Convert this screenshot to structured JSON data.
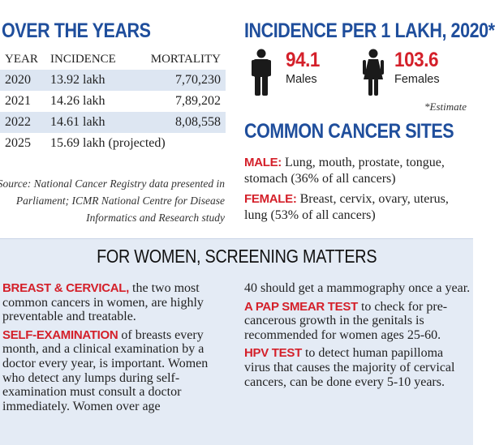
{
  "years": {
    "title": "OVER THE YEARS",
    "headers": {
      "year": "YEAR",
      "incidence": "INCIDENCE",
      "mortality": "MORTALITY"
    },
    "rows": [
      {
        "year": "2020",
        "incidence": "13.92 lakh",
        "mortality": "7,70,230"
      },
      {
        "year": "2021",
        "incidence": "14.26 lakh",
        "mortality": "7,89,202"
      },
      {
        "year": "2022",
        "incidence": "14.61 lakh",
        "mortality": "8,08,558"
      },
      {
        "year": "2025",
        "incidence": "15.69 lakh (projected)",
        "mortality": ""
      }
    ],
    "source": "Source: National Cancer Registry data presented in Parliament; ICMR National Centre for Disease Informatics and Research study"
  },
  "incidence": {
    "title": "INCIDENCE PER 1 LAKH, 2020*",
    "males_value": "94.1",
    "males_label": "Males",
    "females_value": "103.6",
    "females_label": "Females",
    "note": "*Estimate"
  },
  "sites": {
    "title": "COMMON CANCER SITES",
    "male_key": "MALE:",
    "male_text": " Lung, mouth, prostate, tongue, stomach (36% of all cancers)",
    "female_key": "FEMALE:",
    "female_text": " Breast, cervix, ovary, uterus, lung (53% of all cancers)"
  },
  "screening": {
    "title": "FOR WOMEN, SCREENING MATTERS",
    "p1_key": "BREAST & CERVICAL,",
    "p1_text": " the two most common cancers in women, are highly preventable and treatable.",
    "p2_key": "SELF-EXAMINATION",
    "p2_text": " of breasts every month, and a clinical examination by a doctor every year, is important. Women who detect any lumps during self-examination must consult a doctor immediately. Women over age",
    "p3_text": "40 should get a mammography once a year.",
    "p4_key": "A PAP SMEAR TEST",
    "p4_text": " to check for pre-cancerous growth in the genitals is recommended for women ages 25-60.",
    "p5_key": "HPV TEST",
    "p5_text": " to detect human papilloma virus that causes the majority of cervical cancers, can be done every 5-10 years."
  },
  "colors": {
    "heading_blue": "#1f4e9c",
    "accent_red": "#d4202a",
    "row_shade": "#dde6f2",
    "panel_bg": "#e4ebf5"
  },
  "icons": {
    "male": "male-person-icon",
    "female": "female-person-icon"
  }
}
